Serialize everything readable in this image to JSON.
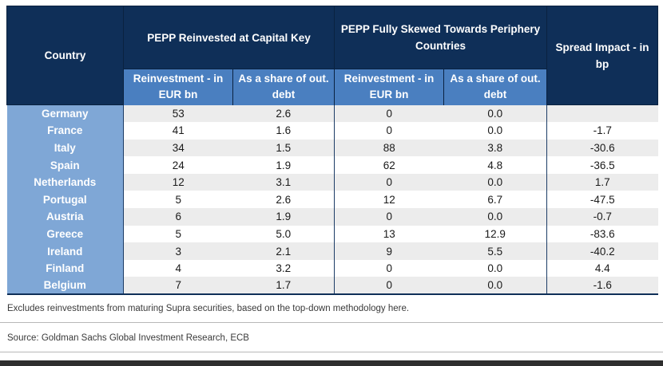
{
  "chart_data": {
    "type": "table",
    "headers": {
      "country": "Country",
      "group_capital_key": "PEPP Reinvested at Capital Key",
      "group_periphery": "PEPP Fully Skewed Towards Periphery Countries",
      "spread": "Spread Impact - in bp",
      "sub_reinvestment": "Reinvestment - in EUR bn",
      "sub_share": "As a share of out. debt"
    },
    "rows": [
      {
        "country": "Germany",
        "cap_reinv": "53",
        "cap_share": "2.6",
        "per_reinv": "0",
        "per_share": "0.0",
        "spread": ""
      },
      {
        "country": "France",
        "cap_reinv": "41",
        "cap_share": "1.6",
        "per_reinv": "0",
        "per_share": "0.0",
        "spread": "-1.7"
      },
      {
        "country": "Italy",
        "cap_reinv": "34",
        "cap_share": "1.5",
        "per_reinv": "88",
        "per_share": "3.8",
        "spread": "-30.6"
      },
      {
        "country": "Spain",
        "cap_reinv": "24",
        "cap_share": "1.9",
        "per_reinv": "62",
        "per_share": "4.8",
        "spread": "-36.5"
      },
      {
        "country": "Netherlands",
        "cap_reinv": "12",
        "cap_share": "3.1",
        "per_reinv": "0",
        "per_share": "0.0",
        "spread": "1.7"
      },
      {
        "country": "Portugal",
        "cap_reinv": "5",
        "cap_share": "2.6",
        "per_reinv": "12",
        "per_share": "6.7",
        "spread": "-47.5"
      },
      {
        "country": "Austria",
        "cap_reinv": "6",
        "cap_share": "1.9",
        "per_reinv": "0",
        "per_share": "0.0",
        "spread": "-0.7"
      },
      {
        "country": "Greece",
        "cap_reinv": "5",
        "cap_share": "5.0",
        "per_reinv": "13",
        "per_share": "12.9",
        "spread": "-83.6"
      },
      {
        "country": "Ireland",
        "cap_reinv": "3",
        "cap_share": "2.1",
        "per_reinv": "9",
        "per_share": "5.5",
        "spread": "-40.2"
      },
      {
        "country": "Finland",
        "cap_reinv": "4",
        "cap_share": "3.2",
        "per_reinv": "0",
        "per_share": "0.0",
        "spread": "4.4"
      },
      {
        "country": "Belgium",
        "cap_reinv": "7",
        "cap_share": "1.7",
        "per_reinv": "0",
        "per_share": "0.0",
        "spread": "-1.6"
      }
    ],
    "colors": {
      "header_dark": "#0f2f58",
      "header_sub": "#4a7fc0",
      "country_column": "#7fa7d6",
      "row_stripe": "#ececec"
    }
  },
  "notes": {
    "footnote": "Excludes reinvestments from maturing Supra securities, based on the top-down methodology here.",
    "source": "Source: Goldman Sachs Global Investment Research, ECB"
  }
}
